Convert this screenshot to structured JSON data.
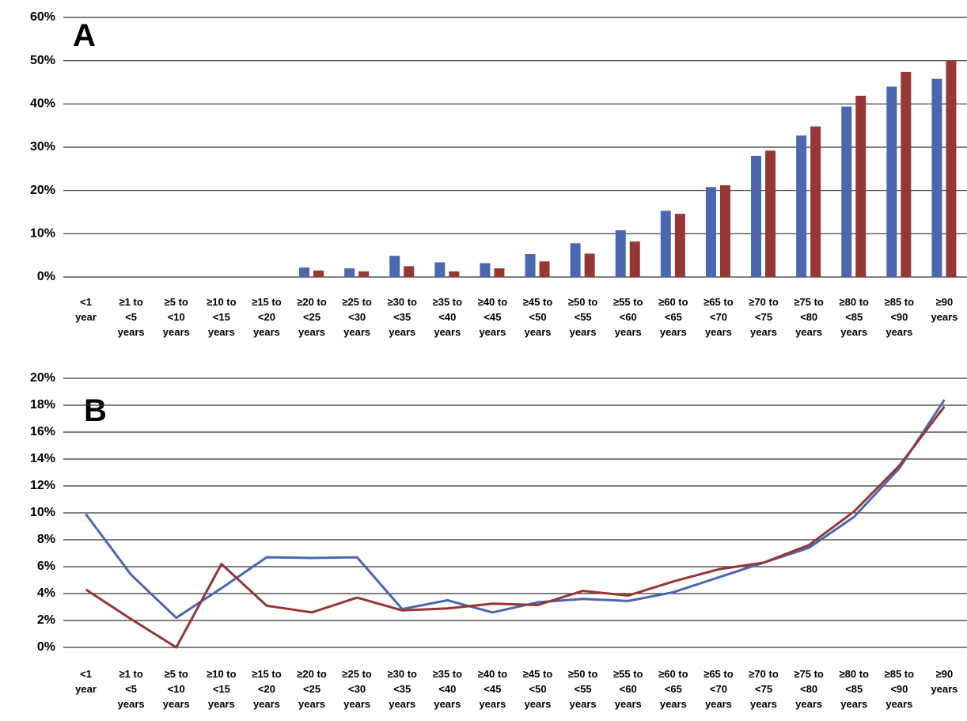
{
  "chart_data": [
    {
      "type": "bar",
      "title": "A",
      "categories": [
        "<1 year",
        "≥1 to <5 years",
        "≥5 to <10 years",
        "≥10 to <15 years",
        "≥15 to <20 years",
        "≥20 to <25 years",
        "≥25 to <30 years",
        "≥30 to <35 years",
        "≥35 to <40 years",
        "≥40 to <45 years",
        "≥45 to <50 years",
        "≥50 to <55 years",
        "≥55 to <60 years",
        "≥60 to <65 years",
        "≥65 to <70 years",
        "≥70 to <75 years",
        "≥75 to <80 years",
        "≥80 to <85 years",
        "≥85 to <90 years",
        "≥90 years"
      ],
      "series": [
        {
          "color": "#4a67b0",
          "values": [
            0,
            0,
            0,
            0,
            0,
            2.2,
            2.0,
            4.9,
            3.4,
            3.2,
            5.3,
            7.8,
            10.8,
            15.3,
            20.8,
            28.0,
            32.7,
            39.4,
            44.0,
            45.8
          ]
        },
        {
          "color": "#953735",
          "values": [
            0,
            0,
            0,
            0,
            0,
            1.5,
            1.3,
            2.5,
            1.3,
            2.0,
            3.6,
            5.4,
            8.2,
            14.6,
            21.2,
            29.2,
            34.8,
            41.9,
            47.4,
            50.0
          ]
        }
      ],
      "ylim": [
        0,
        60
      ],
      "yticks": [
        {
          "value": 0,
          "label": "0%"
        },
        {
          "value": 10,
          "label": "10%"
        },
        {
          "value": 20,
          "label": "20%"
        },
        {
          "value": 30,
          "label": "30%"
        },
        {
          "value": 40,
          "label": "40%"
        },
        {
          "value": 50,
          "label": "50%"
        },
        {
          "value": 60,
          "label": "60%"
        }
      ],
      "grid": true
    },
    {
      "type": "line",
      "title": "B",
      "categories": [
        "<1 year",
        "≥1 to <5 years",
        "≥5 to <10 years",
        "≥10 to <15 years",
        "≥15 to <20 years",
        "≥20 to <25 years",
        "≥25 to <30 years",
        "≥30 to <35 years",
        "≥35 to <40 years",
        "≥40 to <45 years",
        "≥45 to <50 years",
        "≥50 to <55 years",
        "≥55 to <60 years",
        "≥60 to <65 years",
        "≥65 to <70 years",
        "≥70 to <75 years",
        "≥75 to <80 years",
        "≥80 to <85 years",
        "≥85 to <90 years",
        "≥90 years"
      ],
      "series": [
        {
          "color": "#4a67b0",
          "values": [
            9.9,
            5.4,
            2.2,
            4.4,
            6.7,
            6.65,
            6.7,
            2.85,
            3.5,
            2.6,
            3.35,
            3.6,
            3.45,
            4.1,
            5.2,
            6.3,
            7.4,
            9.7,
            13.3,
            18.4
          ]
        },
        {
          "color": "#953735",
          "values": [
            4.3,
            2.1,
            0,
            6.2,
            3.1,
            2.6,
            3.7,
            2.75,
            2.9,
            3.25,
            3.15,
            4.2,
            3.85,
            4.9,
            5.8,
            6.3,
            7.6,
            10.1,
            13.5,
            17.9
          ]
        }
      ],
      "ylim": [
        0,
        20
      ],
      "yticks": [
        {
          "value": 0,
          "label": "0%"
        },
        {
          "value": 2,
          "label": "2%"
        },
        {
          "value": 4,
          "label": "4%"
        },
        {
          "value": 6,
          "label": "6%"
        },
        {
          "value": 8,
          "label": "8%"
        },
        {
          "value": 10,
          "label": "10%"
        },
        {
          "value": 12,
          "label": "12%"
        },
        {
          "value": 14,
          "label": "14%"
        },
        {
          "value": 16,
          "label": "16%"
        },
        {
          "value": 18,
          "label": "18%"
        },
        {
          "value": 20,
          "label": "20%"
        }
      ],
      "grid": true
    }
  ]
}
